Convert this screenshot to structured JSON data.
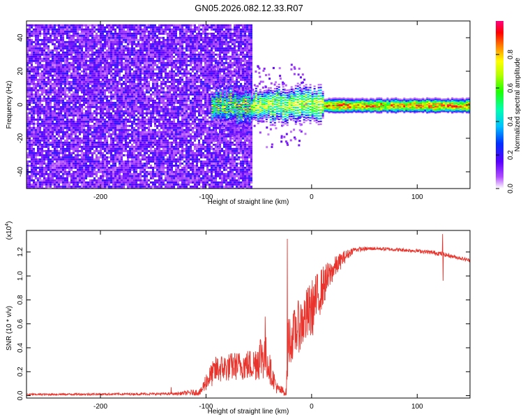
{
  "title": "GN05.2026.082.12.33.R07",
  "colors": {
    "signal": "#e8342c",
    "noise": "#7a1fff",
    "axis": "#000000"
  },
  "chart_data": [
    {
      "type": "heatmap",
      "name": "spectrogram",
      "xlabel": "Height of straight line (km)",
      "ylabel": "Frequency (Hz)",
      "xlim": [
        -270,
        150
      ],
      "ylim": [
        -50,
        50
      ],
      "xticks": [
        -200,
        -100,
        0,
        100
      ],
      "xtick_labels": [
        "-200",
        "-100",
        "0",
        "100"
      ],
      "yticks": [
        -40,
        -20,
        0,
        20,
        40
      ],
      "ytick_labels": [
        "-40",
        "-20",
        "0",
        "20",
        "40"
      ],
      "noise_region": {
        "x_from": -270,
        "x_to": -57,
        "y_from": -50,
        "y_to": 48
      },
      "carrier_band": {
        "x_from": -95,
        "x_to": 150,
        "center_hz": 0,
        "halfwidth_hz": 4
      },
      "colorbar": {
        "label": "Normalized spectral amplitude",
        "range": [
          0.0,
          1.0
        ],
        "ticks": [
          0.0,
          0.2,
          0.4,
          0.6,
          0.8
        ],
        "tick_labels": [
          "0.0",
          "0.2",
          "0.4",
          "0.6",
          "0.8"
        ]
      }
    },
    {
      "type": "line",
      "name": "snr",
      "xlabel": "Height of straight line (km)",
      "ylabel": "SNR (10 * v/v)",
      "exponent_label": "(x10",
      "exponent_power": "4",
      "exponent_close": ")",
      "xlim": [
        -270,
        150
      ],
      "ylim": [
        -0.02,
        1.38
      ],
      "xticks": [
        -200,
        -100,
        0,
        100
      ],
      "xtick_labels": [
        "-200",
        "-100",
        "0",
        "100"
      ],
      "yticks": [
        0.0,
        0.2,
        0.4,
        0.6,
        0.8,
        1.0,
        1.2
      ],
      "ytick_labels": [
        "0.0",
        "0.2",
        "0.4",
        "0.6",
        "0.8",
        "1.0",
        "1.2"
      ],
      "envelope": {
        "x": [
          -270,
          -130,
          -105,
          -100,
          -90,
          -70,
          -55,
          -47,
          -42,
          -38,
          -32,
          -28,
          -24,
          -22,
          -20,
          -15,
          -10,
          0,
          10,
          20,
          30,
          40,
          60,
          80,
          100,
          120,
          135,
          150
        ],
        "mean": [
          0.01,
          0.015,
          0.03,
          0.12,
          0.22,
          0.25,
          0.26,
          0.35,
          0.3,
          0.18,
          0.05,
          0.04,
          0.02,
          0.5,
          0.45,
          0.55,
          0.6,
          0.72,
          0.9,
          1.05,
          1.15,
          1.22,
          1.23,
          1.22,
          1.21,
          1.19,
          1.16,
          1.13
        ],
        "spread": [
          0.008,
          0.01,
          0.03,
          0.08,
          0.12,
          0.12,
          0.14,
          0.22,
          0.18,
          0.1,
          0.05,
          0.04,
          0.04,
          0.3,
          0.18,
          0.22,
          0.22,
          0.25,
          0.18,
          0.1,
          0.06,
          0.02,
          0.015,
          0.015,
          0.015,
          0.02,
          0.015,
          0.015
        ]
      },
      "spikes": [
        {
          "x": -133,
          "y": 0.07
        },
        {
          "x": -44,
          "y": 0.66
        },
        {
          "x": -23,
          "y": 1.31
        },
        {
          "x": 124,
          "y": 1.35
        },
        {
          "x": 124.6,
          "y": 0.96
        }
      ]
    }
  ]
}
